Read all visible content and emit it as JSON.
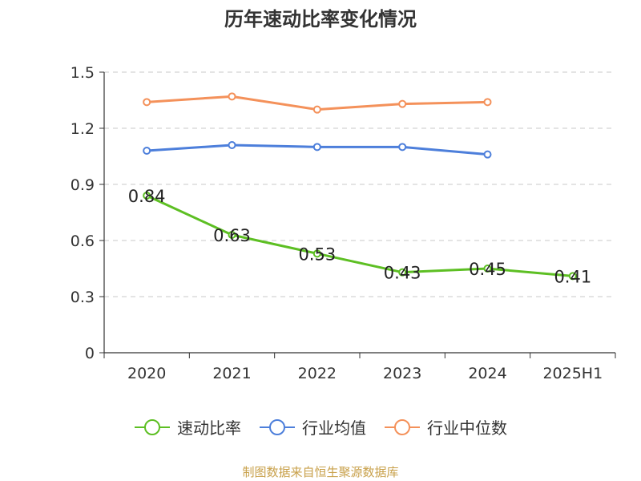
{
  "chart_data": {
    "type": "line",
    "title": "历年速动比率变化情况",
    "categories": [
      "2020",
      "2021",
      "2022",
      "2023",
      "2024",
      "2025H1"
    ],
    "ylim": [
      0,
      1.5
    ],
    "yticks": [
      "0",
      "0.3",
      "0.6",
      "0.9",
      "1.2",
      "1.5"
    ],
    "grid": true,
    "legend_position": "bottom",
    "series": [
      {
        "name": "速动比率",
        "color": "#5dbf23",
        "labeled": true,
        "values": [
          0.84,
          0.63,
          0.53,
          0.43,
          0.45,
          0.41
        ],
        "labels": [
          "0.84",
          "0.63",
          "0.53",
          "0.43",
          "0.45",
          "0.41"
        ]
      },
      {
        "name": "行业均值",
        "color": "#4d7fdb",
        "labeled": false,
        "values": [
          1.08,
          1.11,
          1.1,
          1.1,
          1.06,
          null
        ]
      },
      {
        "name": "行业中位数",
        "color": "#f4915a",
        "labeled": false,
        "values": [
          1.34,
          1.37,
          1.3,
          1.33,
          1.34,
          null
        ]
      }
    ]
  },
  "source": "制图数据来自恒生聚源数据库"
}
